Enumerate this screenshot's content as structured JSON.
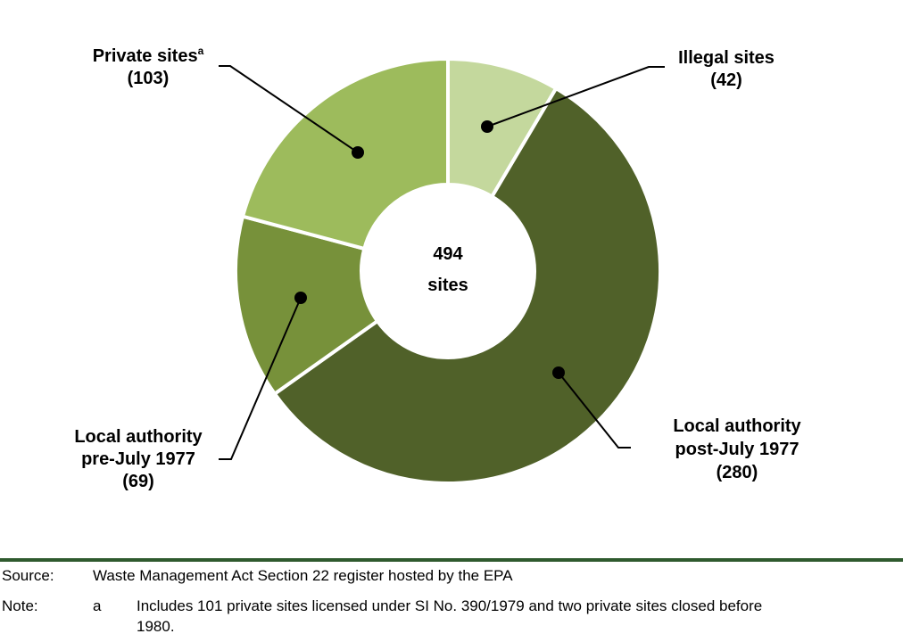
{
  "chart_data": {
    "type": "pie",
    "center_label": {
      "value": "494",
      "unit": "sites"
    },
    "slices": [
      {
        "key": "illegal",
        "label_lines": [
          "Illegal sites"
        ],
        "value": 42,
        "value_label": "(42)",
        "color": "#c4d89d"
      },
      {
        "key": "la-post",
        "label_lines": [
          "Local authority",
          "post-July 1977"
        ],
        "value": 280,
        "value_label": "(280)",
        "color": "#506129"
      },
      {
        "key": "la-pre",
        "label_lines": [
          "Local authority",
          "pre-July 1977"
        ],
        "value": 69,
        "value_label": "(69)",
        "color": "#77913a"
      },
      {
        "key": "private",
        "label_lines": [
          "Private sites"
        ],
        "label_sup": "a",
        "value": 103,
        "value_label": "(103)",
        "color": "#9dbb5c"
      }
    ]
  },
  "footnotes": {
    "source_key": "Source:",
    "source_text": "Waste Management Act Section 22 register hosted by the EPA",
    "note_key": "Note:",
    "note_letter": "a",
    "note_line1": "Includes 101 private sites licensed under SI No. 390/1979 and two private sites closed before",
    "note_line2": "1980."
  },
  "colors": {
    "rule": "#2f5a2e",
    "separator": "#ffffff"
  }
}
